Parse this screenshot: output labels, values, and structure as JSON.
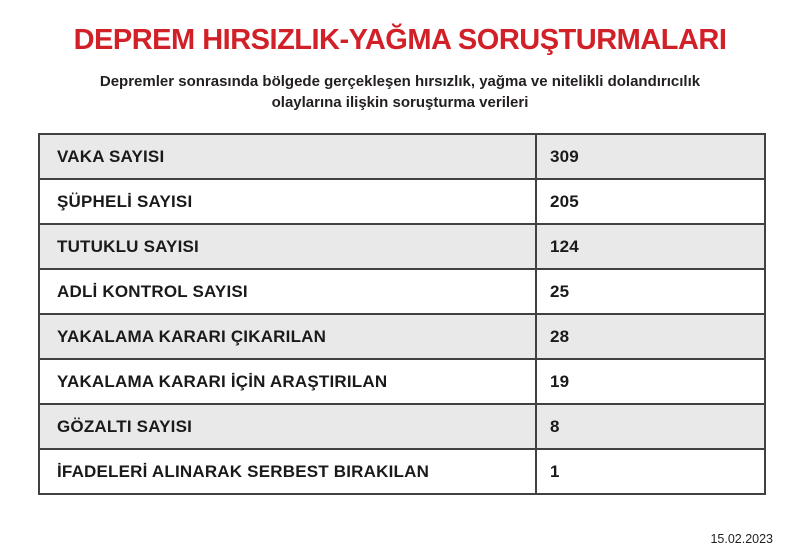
{
  "header": {
    "title": "DEPREM HIRSIZLIK-YAĞMA SORUŞTURMALARI",
    "subtitle_line1": "Depremler sonrasında bölgede gerçekleşen hırsızlık, yağma ve nitelikli dolandırıcılık",
    "subtitle_line2": "olaylarına ilişkin soruşturma verileri"
  },
  "footer": {
    "date": "15.02.2023"
  },
  "colors": {
    "title_red": "#d22028",
    "text_black": "#1a1a1a",
    "alt_row_grey": "#e9e9e9",
    "table_border": "#414042"
  },
  "chart_data": {
    "type": "table",
    "title": "DEPREM HIRSIZLIK-YAĞMA SORUŞTURMALARI",
    "rows": [
      {
        "label": "VAKA SAYISI",
        "value": "309"
      },
      {
        "label": "ŞÜPHELİ SAYISI",
        "value": "205"
      },
      {
        "label": "TUTUKLU SAYISI",
        "value": "124"
      },
      {
        "label": "ADLİ KONTROL SAYISI",
        "value": "25"
      },
      {
        "label": "YAKALAMA KARARI ÇIKARILAN",
        "value": "28"
      },
      {
        "label": "YAKALAMA KARARI İÇİN ARAŞTIRILAN",
        "value": "19"
      },
      {
        "label": "GÖZALTI SAYISI",
        "value": "8"
      },
      {
        "label": "İFADELERİ ALINARAK SERBEST BIRAKILAN",
        "value": "1"
      }
    ]
  }
}
